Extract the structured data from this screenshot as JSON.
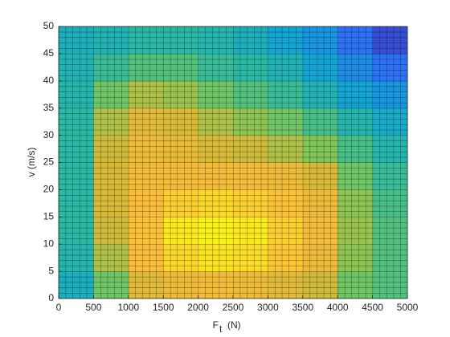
{
  "chart_data": {
    "type": "heatmap",
    "xlabel": "F",
    "xlabel_sub": "t",
    "xlabel_unit": "(N)",
    "ylabel": "v (m/s)",
    "xlim": [
      0,
      5000
    ],
    "ylim": [
      0,
      50
    ],
    "xticks": [
      0,
      500,
      1000,
      1500,
      2000,
      2500,
      3000,
      3500,
      4000,
      4500,
      5000
    ],
    "yticks": [
      0,
      5,
      10,
      15,
      20,
      25,
      30,
      35,
      40,
      45,
      50
    ],
    "x_edges": [
      0,
      500,
      1000,
      1500,
      2000,
      2500,
      3000,
      3500,
      4000,
      4500,
      5000
    ],
    "y_edges": [
      0,
      5,
      10,
      15,
      20,
      25,
      30,
      35,
      40,
      45,
      50
    ],
    "clim": [
      0,
      1
    ],
    "colormap": [
      "#3e26a8",
      "#2f6ef5",
      "#0fa3d8",
      "#2cb9a1",
      "#7bc65a",
      "#d6b937",
      "#fcbc3a",
      "#f9fa14"
    ],
    "z": [
      [
        0.35,
        0.55,
        0.75,
        0.8,
        0.82,
        0.8,
        0.75,
        0.7,
        0.55,
        0.5
      ],
      [
        0.4,
        0.65,
        0.85,
        0.92,
        0.95,
        0.93,
        0.88,
        0.8,
        0.6,
        0.5
      ],
      [
        0.42,
        0.7,
        0.87,
        0.96,
        0.98,
        0.96,
        0.9,
        0.82,
        0.62,
        0.5
      ],
      [
        0.42,
        0.72,
        0.85,
        0.9,
        0.92,
        0.9,
        0.87,
        0.8,
        0.6,
        0.48
      ],
      [
        0.42,
        0.72,
        0.82,
        0.82,
        0.82,
        0.82,
        0.8,
        0.72,
        0.55,
        0.45
      ],
      [
        0.42,
        0.7,
        0.8,
        0.78,
        0.72,
        0.7,
        0.65,
        0.58,
        0.48,
        0.4
      ],
      [
        0.42,
        0.65,
        0.75,
        0.72,
        0.65,
        0.6,
        0.55,
        0.48,
        0.4,
        0.33
      ],
      [
        0.4,
        0.55,
        0.65,
        0.62,
        0.55,
        0.5,
        0.45,
        0.38,
        0.3,
        0.25
      ],
      [
        0.38,
        0.45,
        0.5,
        0.5,
        0.45,
        0.42,
        0.38,
        0.3,
        0.22,
        0.15
      ],
      [
        0.36,
        0.38,
        0.42,
        0.42,
        0.4,
        0.36,
        0.3,
        0.25,
        0.15,
        0.08
      ]
    ]
  }
}
